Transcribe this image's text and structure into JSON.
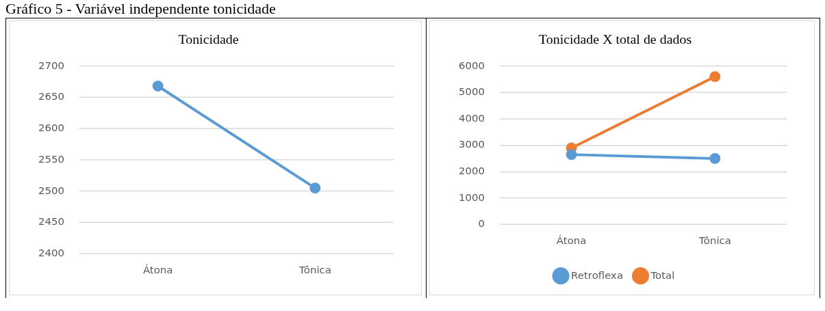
{
  "chart_data": [
    {
      "type": "line",
      "title": "Tonicidade",
      "annotations": [
        "Gráfico 5 - Variável independente tonicidade"
      ],
      "categories": [
        "Átona",
        "Tônica"
      ],
      "series": [
        {
          "color": "#5b9bd5",
          "values": [
            2668,
            2505
          ]
        }
      ],
      "ylim": [
        2400,
        2700
      ],
      "yticks": [
        2400,
        2450,
        2500,
        2550,
        2600,
        2650,
        2700
      ],
      "grid": "y",
      "marker": "circle",
      "legend": false
    },
    {
      "type": "line",
      "title": "Tonicidade X total de dados",
      "categories": [
        "Átona",
        "Tônica"
      ],
      "series": [
        {
          "name": "Retroflexa",
          "color": "#5b9bd5",
          "values": [
            2650,
            2500
          ]
        },
        {
          "name": "Total",
          "color": "#ed7d31",
          "values": [
            2900,
            5600
          ]
        }
      ],
      "ylim": [
        0,
        6000
      ],
      "yticks": [
        0,
        1000,
        2000,
        3000,
        4000,
        5000,
        6000
      ],
      "grid": "y",
      "marker": "circle",
      "legend": "bottom"
    }
  ]
}
